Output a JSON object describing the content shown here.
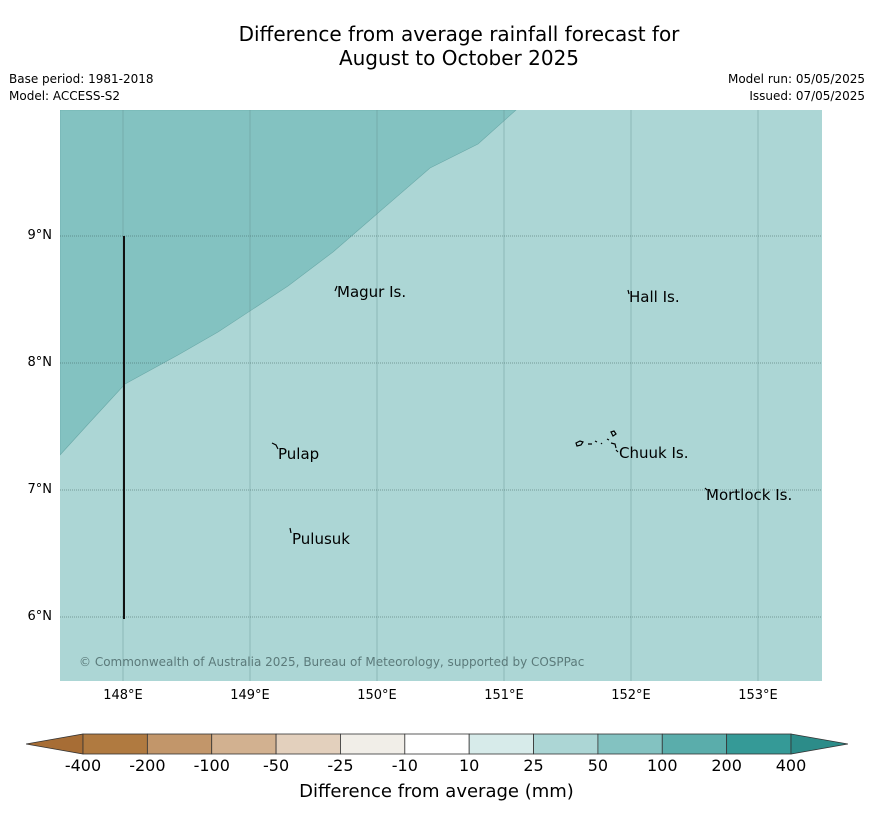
{
  "title": {
    "line1": "Difference from average rainfall forecast for",
    "line2": "August to October 2025"
  },
  "meta": {
    "base_period": "Base period: 1981-2018",
    "model": "Model: ACCESS-S2",
    "model_run": "Model run: 05/05/2025",
    "issued": "Issued: 07/05/2025"
  },
  "map": {
    "places": [
      "Magur Is.",
      "Hall Is.",
      "Pulap",
      "Chuuk Is.",
      "Mortlock Is.",
      "Pulusuk"
    ],
    "lat_labels": [
      "9°N",
      "8°N",
      "7°N",
      "6°N"
    ],
    "lon_labels": [
      "148°E",
      "149°E",
      "150°E",
      "151°E",
      "152°E",
      "153°E"
    ],
    "copyright": "© Commonwealth of Australia 2025, Bureau of Meteorology, supported by COSPPac",
    "colors": {
      "category_25_50": "#acd6d5",
      "category_50_100": "#83c2c1"
    }
  },
  "legend": {
    "title": "Difference from average (mm)",
    "ticks": [
      "-400",
      "-200",
      "-100",
      "-50",
      "-25",
      "-10",
      "10",
      "25",
      "50",
      "100",
      "200",
      "400"
    ],
    "colors": [
      "#b07a40",
      "#c2966a",
      "#d2b190",
      "#e3d0bd",
      "#f1eee8",
      "#ffffff",
      "#d7ebea",
      "#acd6d5",
      "#83c2c1",
      "#5aadab",
      "#359a97"
    ],
    "extend_low_color": "#a76d35",
    "extend_high_color": "#2c8c89"
  }
}
